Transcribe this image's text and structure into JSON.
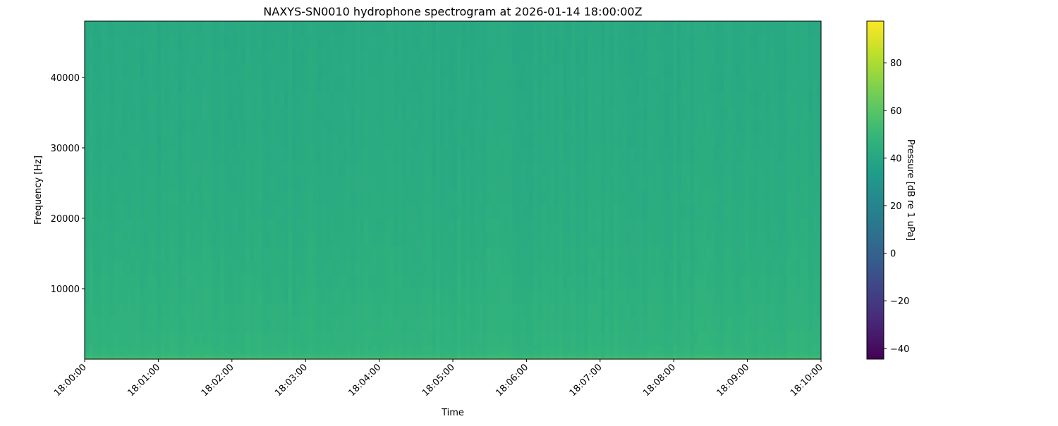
{
  "chart_data": {
    "type": "heatmap",
    "title": "NAXYS-SN0010 hydrophone spectrogram at 2026-01-14 18:00:00Z",
    "xlabel": "Time",
    "ylabel": "Frequency [Hz]",
    "colorbar_label": "Pressure [dB re 1 uPa]",
    "colormap": "viridis",
    "xlim": [
      "18:00:00",
      "18:10:00"
    ],
    "x_ticks": [
      "18:00:00",
      "18:01:00",
      "18:02:00",
      "18:03:00",
      "18:04:00",
      "18:05:00",
      "18:06:00",
      "18:07:00",
      "18:08:00",
      "18:09:00",
      "18:10:00"
    ],
    "ylim": [
      0,
      48000
    ],
    "y_ticks": [
      10000,
      20000,
      30000,
      40000
    ],
    "clim": [
      -44.5,
      97.5
    ],
    "colorbar_ticks": [
      -40,
      -20,
      0,
      20,
      40,
      60,
      80
    ],
    "mean_level_profile": {
      "frequency_hz": [
        0,
        300,
        800,
        2000,
        10000,
        20000,
        30000,
        48000
      ],
      "level_db": [
        62,
        52,
        48,
        47,
        45,
        43.5,
        42.5,
        41.5
      ]
    },
    "grid": false
  }
}
